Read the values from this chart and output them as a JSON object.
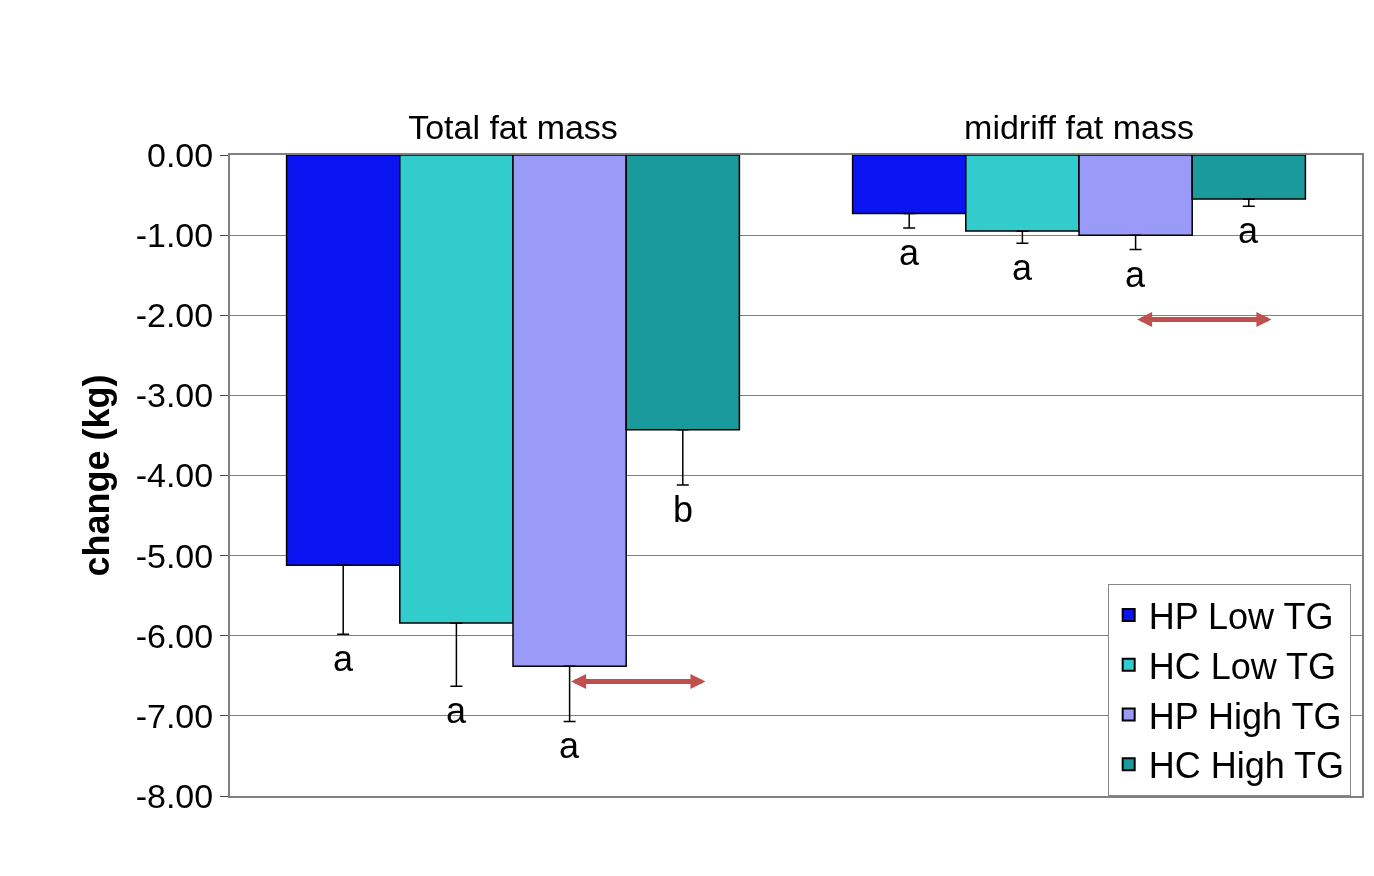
{
  "chart_data": {
    "type": "bar",
    "ylabel": "change (kg)",
    "categories": [
      "Total fat mass",
      "midriff fat mass"
    ],
    "series": [
      {
        "name": "HP Low TG",
        "color": "#0a14f0",
        "values": [
          -5.12,
          -0.73
        ],
        "errors": [
          [
            -5.98,
            -5.12
          ],
          [
            -0.91,
            -0.73
          ]
        ]
      },
      {
        "name": "HC Low TG",
        "color": "#33cccc",
        "values": [
          -5.84,
          -0.95
        ],
        "errors": [
          [
            -6.63,
            -5.84
          ],
          [
            -1.1,
            -0.95
          ]
        ]
      },
      {
        "name": "HP High TG",
        "color": "#9a9af8",
        "values": [
          -6.38,
          -1.0
        ],
        "errors": [
          [
            -7.07,
            -6.38
          ],
          [
            -1.18,
            -1.0
          ]
        ]
      },
      {
        "name": "HC High TG",
        "color": "#1a9a9a",
        "values": [
          -3.43,
          -0.55
        ],
        "errors": [
          [
            -4.12,
            -3.43
          ],
          [
            -0.64,
            -0.55
          ]
        ]
      }
    ],
    "ylim": [
      -8,
      0
    ],
    "yticks": [
      {
        "value": 0,
        "label": "0.00"
      },
      {
        "value": -1,
        "label": "-1.00"
      },
      {
        "value": -2,
        "label": "-2.00"
      },
      {
        "value": -3,
        "label": "-3.00"
      },
      {
        "value": -4,
        "label": "-4.00"
      },
      {
        "value": -5,
        "label": "-5.00"
      },
      {
        "value": -6,
        "label": "-6.00"
      },
      {
        "value": -7,
        "label": "-7.00"
      },
      {
        "value": -8,
        "label": "-8.00"
      }
    ],
    "grid": "y",
    "legend": "bottom right",
    "annotations": [
      "a",
      "a",
      "a",
      "b",
      "a",
      "a",
      "a",
      "a"
    ]
  }
}
